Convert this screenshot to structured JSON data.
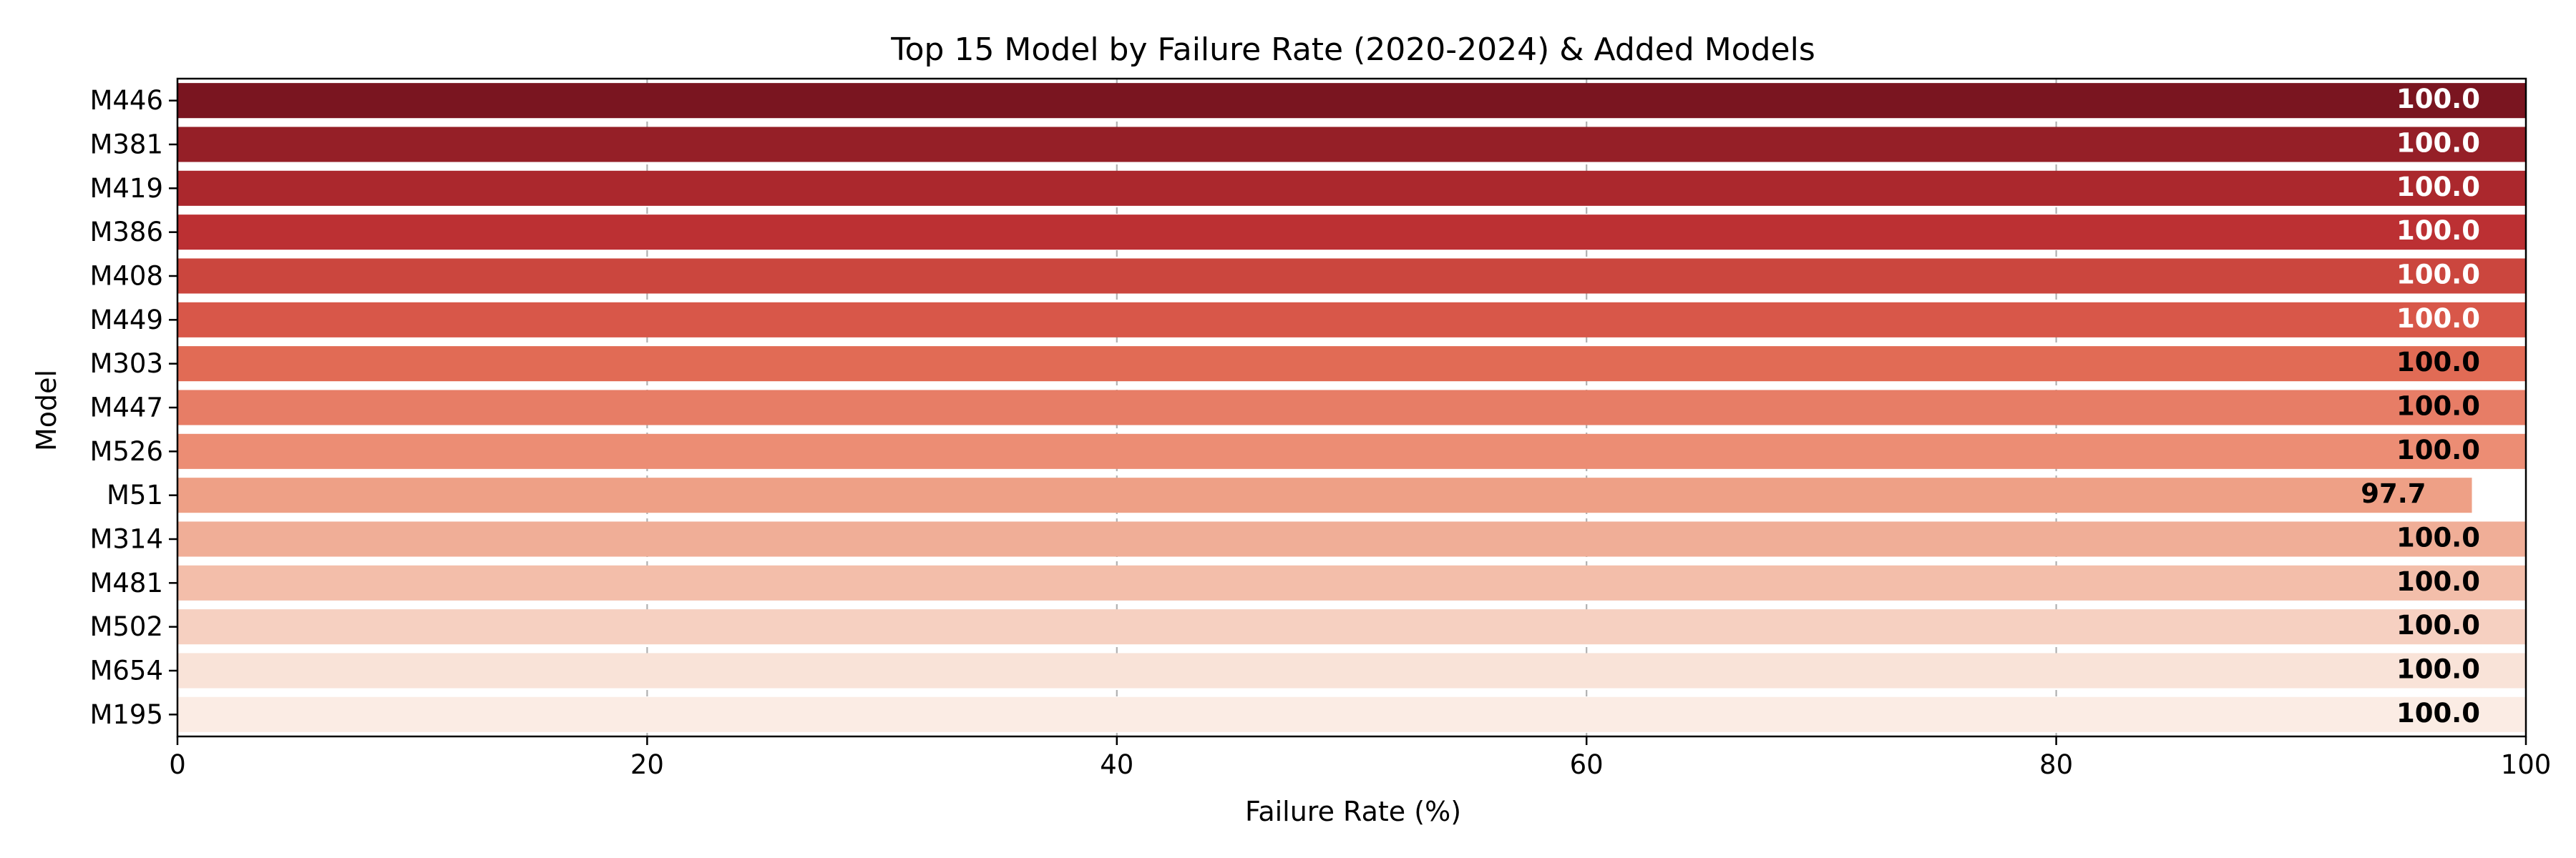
{
  "chart_data": {
    "type": "bar",
    "orientation": "horizontal",
    "title": "Top 15 Model by Failure Rate (2020-2024) & Added Models",
    "xlabel": "Failure Rate (%)",
    "ylabel": "Model",
    "xlim": [
      0,
      100
    ],
    "xticks": [
      0,
      20,
      40,
      60,
      80,
      100
    ],
    "grid": "x-dashed",
    "categories": [
      "M446",
      "M381",
      "M419",
      "M386",
      "M408",
      "M449",
      "M303",
      "M447",
      "M526",
      "M51",
      "M314",
      "M481",
      "M502",
      "M654",
      "M195"
    ],
    "values": [
      100.0,
      100.0,
      100.0,
      100.0,
      100.0,
      100.0,
      100.0,
      100.0,
      100.0,
      97.7,
      100.0,
      100.0,
      100.0,
      100.0,
      100.0
    ],
    "data_labels": [
      "100.0",
      "100.0",
      "100.0",
      "100.0",
      "100.0",
      "100.0",
      "100.0",
      "100.0",
      "100.0",
      "97.7",
      "100.0",
      "100.0",
      "100.0",
      "100.0",
      "100.0"
    ],
    "colors": [
      "#7a1520",
      "#951f27",
      "#ab282d",
      "#bc3033",
      "#cb463e",
      "#d85749",
      "#e16b55",
      "#e77d66",
      "#ec8d74",
      "#eea086",
      "#f0ae97",
      "#f3beaa",
      "#f6d0c1",
      "#f9e3d8",
      "#fbece4"
    ],
    "label_colors": [
      "#ffffff",
      "#ffffff",
      "#ffffff",
      "#ffffff",
      "#ffffff",
      "#ffffff",
      "#000000",
      "#000000",
      "#000000",
      "#000000",
      "#000000",
      "#000000",
      "#000000",
      "#000000",
      "#000000"
    ]
  }
}
